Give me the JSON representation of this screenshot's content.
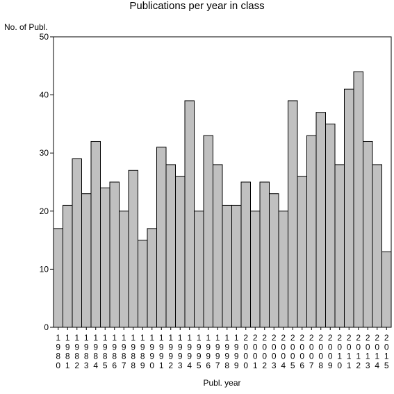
{
  "chart_data": {
    "type": "bar",
    "title": "Publications per year in class",
    "ylabel": "No. of Publ.",
    "xlabel": "Publ. year",
    "ylim": [
      0,
      50
    ],
    "yticks": [
      "0",
      "10",
      "20",
      "30",
      "40",
      "50"
    ],
    "grid": false,
    "bar_color": "#c0c0c0",
    "categories": [
      "1980",
      "1981",
      "1982",
      "1983",
      "1984",
      "1985",
      "1986",
      "1987",
      "1988",
      "1989",
      "1990",
      "1991",
      "1992",
      "1993",
      "1994",
      "1995",
      "1996",
      "1997",
      "1998",
      "1999",
      "2000",
      "2001",
      "2002",
      "2003",
      "2004",
      "2005",
      "2006",
      "2007",
      "2008",
      "2009",
      "2010",
      "2011",
      "2012",
      "2013",
      "2014",
      "2015"
    ],
    "values": [
      17,
      21,
      29,
      23,
      32,
      24,
      25,
      20,
      27,
      15,
      17,
      31,
      28,
      26,
      39,
      20,
      33,
      28,
      21,
      21,
      25,
      20,
      25,
      23,
      20,
      39,
      26,
      33,
      37,
      35,
      28,
      41,
      44,
      32,
      28,
      13
    ]
  }
}
